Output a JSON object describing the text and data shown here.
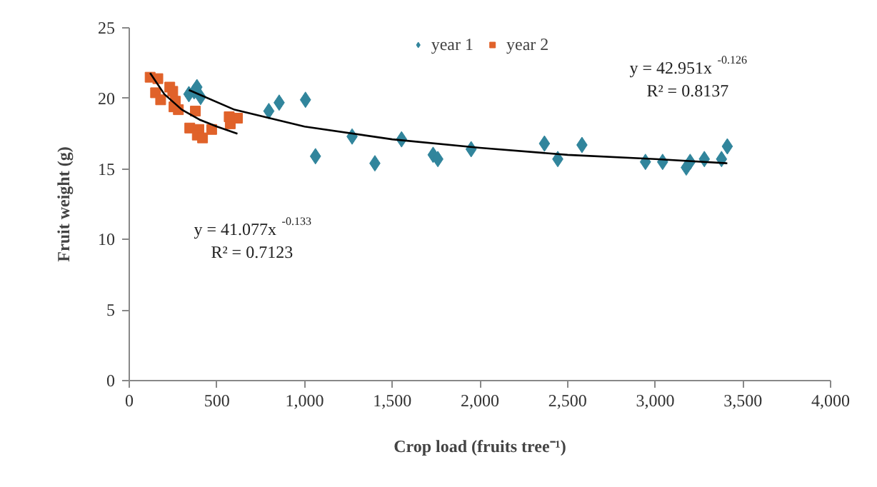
{
  "chart_data": {
    "type": "scatter",
    "xlabel": "Crop load (fruits tree⁻¹)",
    "ylabel": "Fruit weight (g)",
    "xlim": [
      0,
      4000
    ],
    "ylim": [
      0,
      25
    ],
    "xticks": [
      0,
      500,
      {
        "value": 1000,
        "label": "1,000"
      },
      {
        "value": 1500,
        "label": "1,500"
      },
      {
        "value": 2000,
        "label": "2,000"
      },
      {
        "value": 2500,
        "label": "2,500"
      },
      {
        "value": 3000,
        "label": "3,000"
      },
      {
        "value": 3500,
        "label": "3,500"
      },
      {
        "value": 4000,
        "label": "4,000"
      }
    ],
    "yticks": [
      0,
      5,
      10,
      15,
      20,
      25
    ],
    "grid": false,
    "legend": "top",
    "series": [
      {
        "name": "year 1",
        "color": "#31859c",
        "marker": "diamond",
        "x": [
          340,
          386,
          407,
          370,
          796,
          855,
          1005,
          1062,
          1271,
          1401,
          1553,
          1733,
          1760,
          1950,
          2368,
          2444,
          2582,
          2944,
          3042,
          3177,
          3199,
          3280,
          3378,
          3411
        ],
        "values": [
          20.3,
          20.8,
          20.1,
          20.5,
          19.1,
          19.7,
          19.9,
          15.9,
          17.3,
          15.4,
          17.1,
          16.0,
          15.7,
          16.4,
          16.8,
          15.7,
          16.7,
          15.5,
          15.5,
          15.1,
          15.5,
          15.7,
          15.7,
          16.6
        ]
      },
      {
        "name": "year 2",
        "color": "#e0622a",
        "marker": "square",
        "x": [
          119,
          163,
          150,
          179,
          231,
          248,
          263,
          255,
          280,
          377,
          345,
          397,
          388,
          418,
          470,
          576,
          617,
          570
        ],
        "values": [
          21.5,
          21.4,
          20.4,
          19.9,
          20.8,
          20.5,
          19.8,
          19.4,
          19.2,
          19.1,
          17.9,
          17.8,
          17.4,
          17.2,
          17.8,
          18.2,
          18.6,
          18.7
        ]
      },
      {
        "type": "line",
        "color": "#000000",
        "x": [
          340,
          600,
          1000,
          1500,
          2000,
          2500,
          3000,
          3411
        ],
        "values": [
          20.6,
          19.2,
          18.0,
          17.1,
          16.5,
          16.0,
          15.7,
          15.4
        ]
      },
      {
        "type": "line",
        "color": "#000000",
        "x": [
          119,
          200,
          300,
          400,
          500,
          617
        ],
        "values": [
          21.8,
          20.3,
          19.2,
          18.5,
          18.0,
          17.5
        ]
      }
    ],
    "annotations": [
      "y = 42.951x$^{-0.126}$",
      "R² = 0.8137",
      "y = 41.077x$^{-0.133}$",
      "R² = 0.7123"
    ]
  }
}
